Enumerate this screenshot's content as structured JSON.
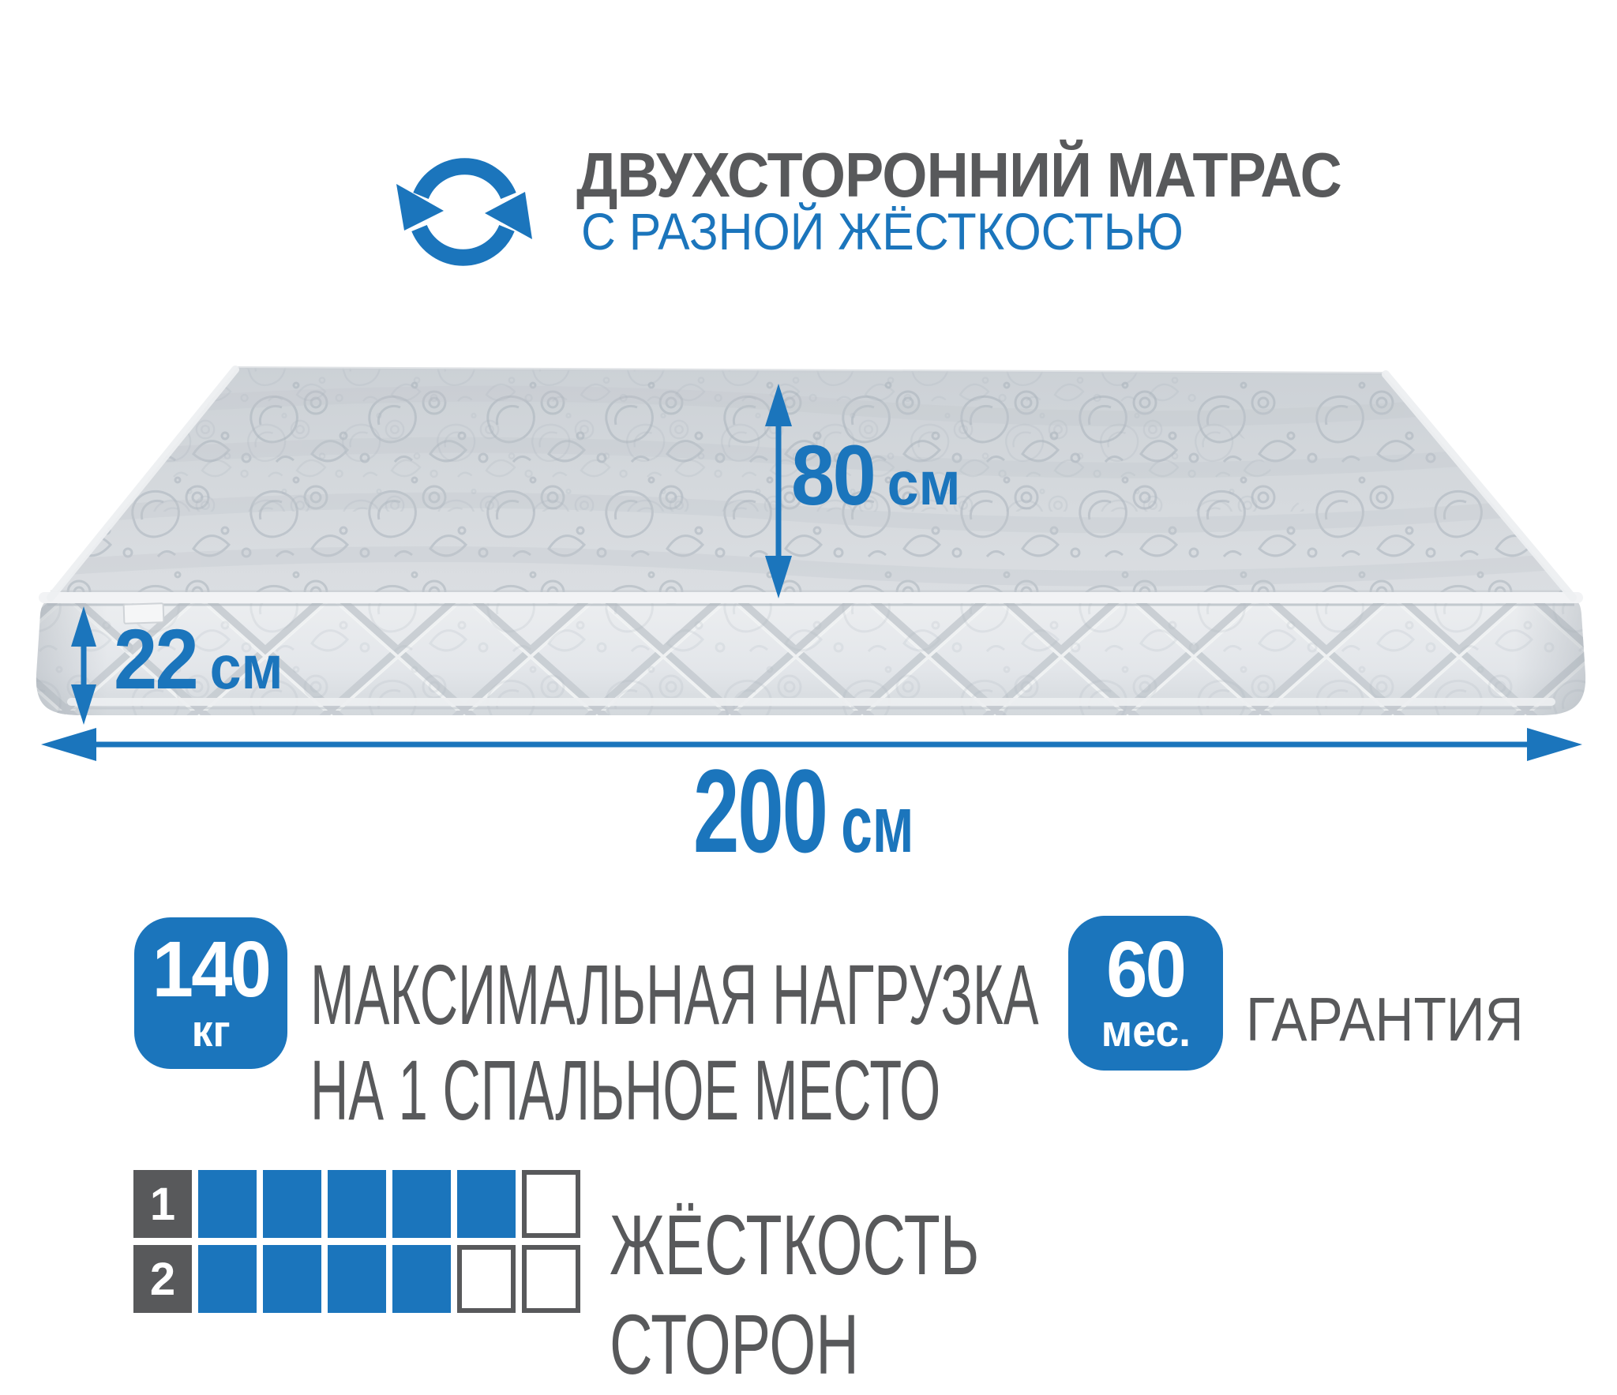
{
  "header": {
    "icon": "rotate-arrows-icon",
    "title": "ДВУХСТОРОННИЙ МАТРАС",
    "subtitle": "С РАЗНОЙ ЖЁСТКОСТЬЮ"
  },
  "dimensions": {
    "width": {
      "value": "80",
      "unit": "см"
    },
    "thickness": {
      "value": "22",
      "unit": "см"
    },
    "length": {
      "value": "200",
      "unit": "см"
    }
  },
  "badges": [
    {
      "value": "140",
      "unit": "кг",
      "caption_line1": "МАКСИМАЛЬНАЯ НАГРУЗКА",
      "caption_line2": "НА 1 СПАЛЬНОЕ МЕСТО"
    },
    {
      "value": "60",
      "unit": "мес.",
      "caption_line1": "ГАРАНТИЯ",
      "caption_line2": ""
    }
  ],
  "firmness_scale": {
    "rows": [
      {
        "label": "1",
        "filled": 5,
        "total": 6
      },
      {
        "label": "2",
        "filled": 4,
        "total": 6
      }
    ],
    "caption_line1": "ЖЁСТКОСТЬ",
    "caption_line2": "СТОРОН"
  },
  "colors": {
    "accent_blue": "#1b75bc",
    "text_gray": "#58595b",
    "mattress_top": "#d3d8dc",
    "mattress_side": "#e6e9ec"
  }
}
